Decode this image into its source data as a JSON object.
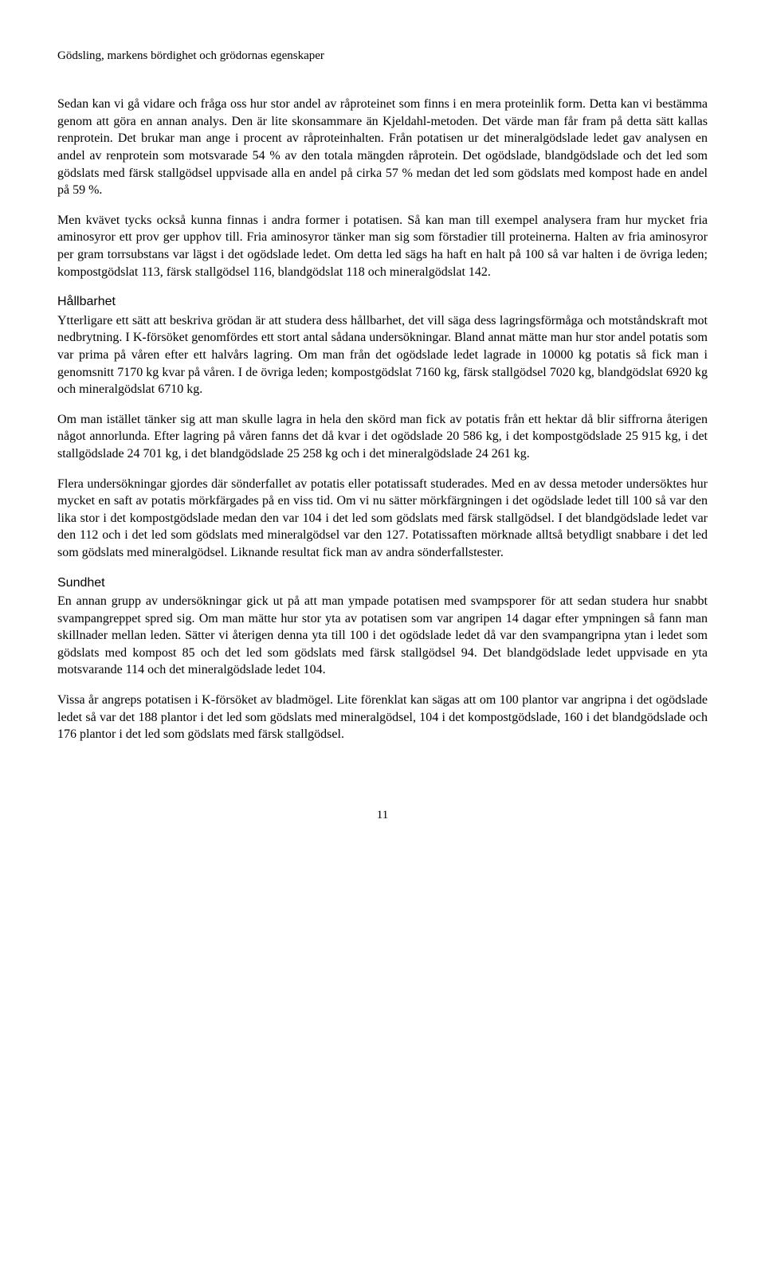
{
  "runningHeader": "Gödsling, markens bördighet och grödornas egenskaper",
  "paragraphs": {
    "p1": "Sedan kan vi gå vidare och fråga oss hur stor andel av råproteinet som finns i en mera proteinlik form. Detta kan vi bestämma genom att göra en annan analys. Den är lite skonsammare än Kjeldahl-metoden. Det värde man får fram på detta sätt kallas renprotein. Det brukar man ange i procent av råproteinhalten. Från potatisen ur det mineralgödslade ledet gav analysen en andel av renprotein som motsvarade 54 % av den totala mängden råprotein. Det ogödslade, blandgödslade och det led som gödslats med färsk stallgödsel uppvisade alla en andel på cirka 57 % medan det led som gödslats med kompost hade en andel på 59 %.",
    "p2": "Men kvävet tycks också kunna finnas i andra former i potatisen. Så kan man till exempel analysera fram hur mycket fria aminosyror ett prov ger upphov till. Fria aminosyror tänker man sig som förstadier till proteinerna. Halten av fria aminosyror per gram torrsubstans var lägst i det ogödslade ledet. Om detta led sägs ha haft en halt på 100 så var halten i de övriga leden; kompostgödslat 113, färsk stallgödsel 116, blandgödslat 118 och mineralgödslat 142.",
    "p3": "Ytterligare ett sätt att beskriva grödan är att studera dess hållbarhet, det vill säga dess lagringsförmåga och motståndskraft mot nedbrytning. I K-försöket genomfördes ett stort antal sådana undersökningar. Bland annat mätte man hur stor andel potatis som var prima på våren efter ett halvårs lagring. Om man från det ogödslade ledet lagrade in 10000 kg potatis så fick man i genomsnitt 7170 kg kvar på våren. I de övriga leden; kompostgödslat 7160 kg, färsk stallgödsel 7020 kg, blandgödslat 6920 kg och mineralgödslat 6710 kg.",
    "p4": "Om man istället tänker sig att man skulle lagra in hela den skörd man fick av potatis från ett hektar då blir siffrorna återigen något annorlunda. Efter lagring på våren fanns det då kvar i det ogödslade 20 586 kg, i det kompostgödslade 25 915 kg, i det stallgödslade 24 701 kg, i det blandgödslade 25 258 kg och i det mineralgödslade 24 261 kg.",
    "p5": "Flera undersökningar gjordes där sönderfallet av potatis eller potatissaft studerades. Med en av dessa metoder undersöktes hur mycket en saft av potatis mörkfärgades på en viss tid. Om vi nu sätter mörkfärgningen i det ogödslade ledet till 100 så var den lika stor i det kompostgödslade medan den var 104 i det led som gödslats med färsk stallgödsel. I det blandgödslade ledet var den 112 och i det led som gödslats med mineralgödsel var den 127. Potatissaften mörknade alltså betydligt snabbare i det led som gödslats med mineralgödsel. Liknande resultat fick man av andra sönderfallstester.",
    "p6": "En annan grupp av undersökningar gick ut på att man ympade potatisen med svampsporer för att sedan studera hur snabbt svampangreppet spred sig. Om man mätte hur stor yta av potatisen som var angripen 14 dagar efter ympningen så fann man skillnader mellan leden. Sätter vi återigen denna yta till 100 i det ogödslade ledet då var den svampangripna ytan i ledet som gödslats med kompost 85 och det led som gödslats med färsk stallgödsel 94. Det blandgödslade ledet uppvisade en yta motsvarande 114 och det mineralgödslade ledet 104.",
    "p7": "Vissa år angreps potatisen i K-försöket av bladmögel. Lite förenklat kan sägas att om 100 plantor var angripna i det ogödslade ledet så var det 188 plantor i det led som gödslats med mineralgödsel, 104 i det kompostgödslade, 160 i det blandgödslade och 176 plantor i det led som gödslats med färsk stallgödsel."
  },
  "headings": {
    "h1": "Hållbarhet",
    "h2": "Sundhet"
  },
  "pageNumber": "11"
}
